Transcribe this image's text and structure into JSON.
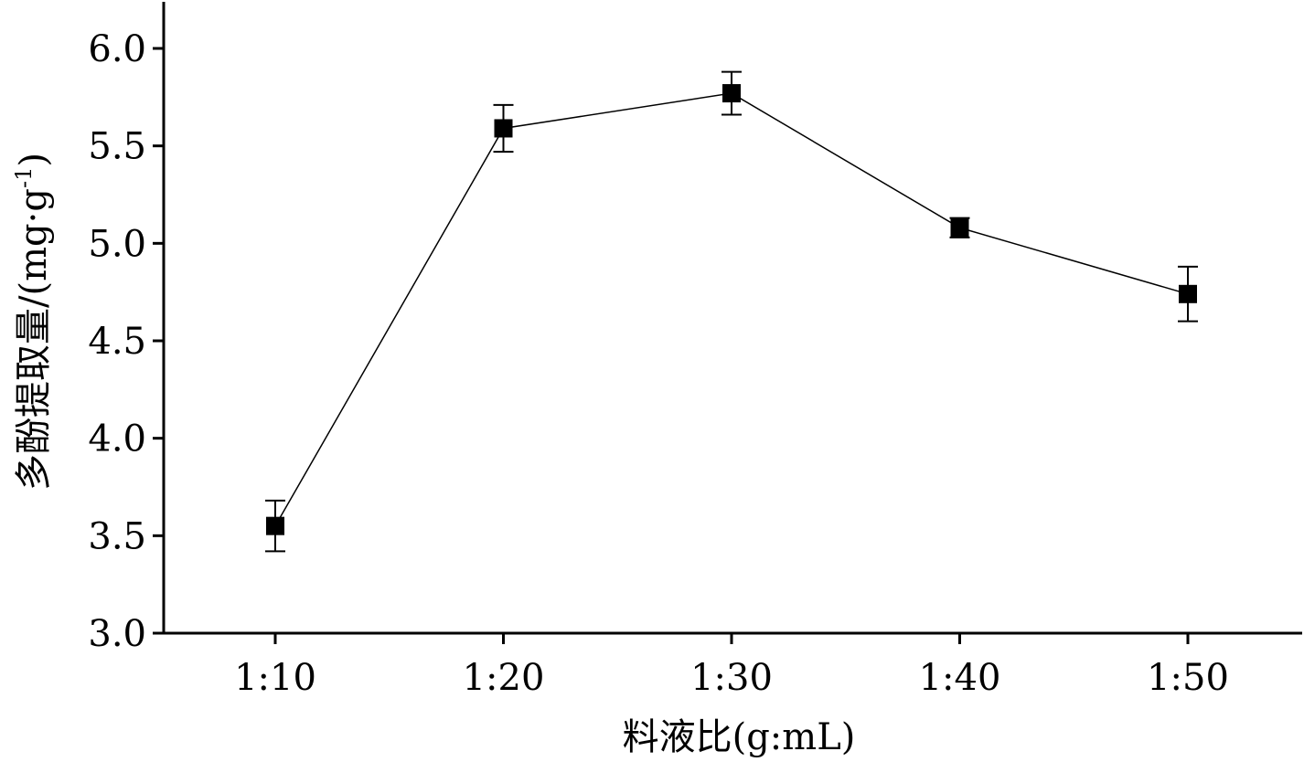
{
  "chart_data": {
    "type": "line",
    "title": "",
    "xlabel": "料液比(g:mL)",
    "ylabel": "多酚提取量/(mg·g",
    "ylabel_sup": "-1",
    "ylabel_close": ")",
    "categories": [
      "1:10",
      "1:20",
      "1:30",
      "1:40",
      "1:50"
    ],
    "series": [
      {
        "values": [
          3.55,
          5.59,
          5.77,
          5.08,
          4.74
        ],
        "errors": [
          0.13,
          0.12,
          0.11,
          0.05,
          0.14
        ],
        "marker": "square",
        "color": "#000000"
      }
    ],
    "ylim": [
      3.0,
      6.25
    ],
    "yticks": [
      3.0,
      3.5,
      4.0,
      4.5,
      5.0,
      5.5,
      6.0
    ],
    "ytick_labels": [
      "3.0",
      "3.5",
      "4.0",
      "4.5",
      "5.0",
      "5.5",
      "6.0"
    ],
    "grid": false,
    "legend": "none"
  }
}
